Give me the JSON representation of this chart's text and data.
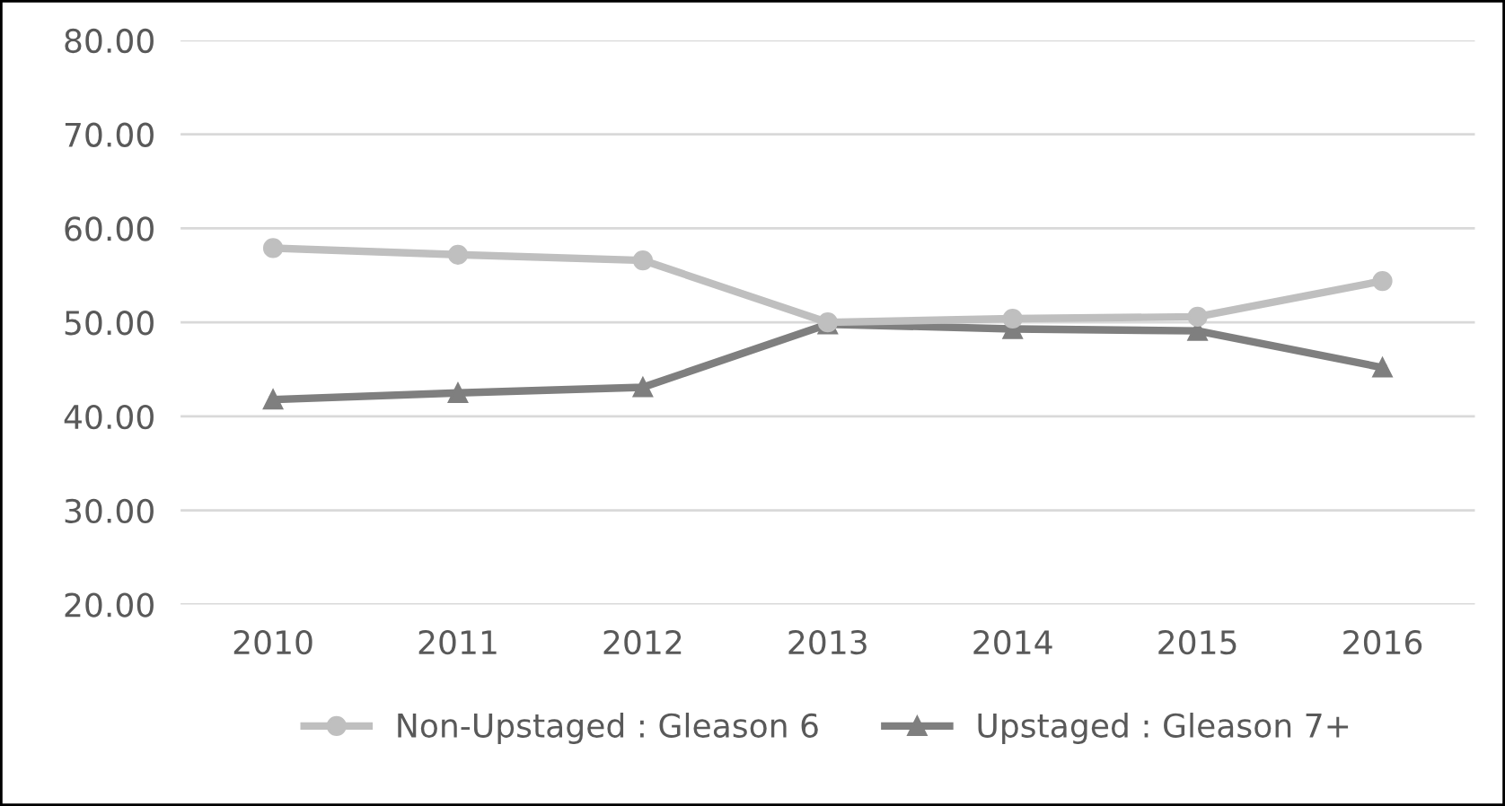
{
  "chart_data": {
    "type": "line",
    "categories": [
      "2010",
      "2011",
      "2012",
      "2013",
      "2014",
      "2015",
      "2016"
    ],
    "series": [
      {
        "name": "Non-Upstaged : Gleason 6",
        "color": "#bfbfbf",
        "marker": "circle",
        "values": [
          57.9,
          57.2,
          56.6,
          50.0,
          50.4,
          50.6,
          54.4
        ]
      },
      {
        "name": "Upstaged : Gleason 7+",
        "color": "#7f7f7f",
        "marker": "triangle",
        "values": [
          41.8,
          42.5,
          43.1,
          49.8,
          49.3,
          49.1,
          45.2
        ]
      }
    ],
    "ylim": [
      20,
      80
    ],
    "yticks": [
      {
        "value": 20,
        "label": "20.00"
      },
      {
        "value": 30,
        "label": "30.00"
      },
      {
        "value": 40,
        "label": "40.00"
      },
      {
        "value": 50,
        "label": "50.00"
      },
      {
        "value": 60,
        "label": "60.00"
      },
      {
        "value": 70,
        "label": "70.00"
      },
      {
        "value": 80,
        "label": "80.00"
      }
    ],
    "grid": "y",
    "legend": "bottom",
    "line_style": "solid"
  }
}
